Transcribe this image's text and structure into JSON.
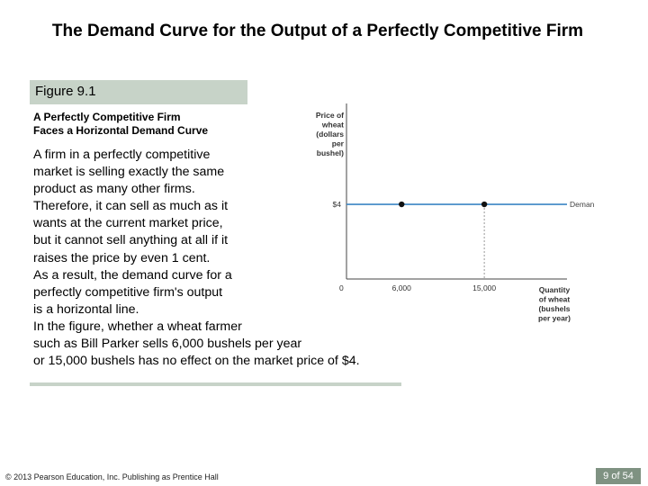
{
  "slide": {
    "title": "The Demand Curve for the Output of a Perfectly Competitive Firm",
    "figure_label": "Figure 9.1",
    "figure_subtitle": [
      "A Perfectly Competitive Firm",
      "Faces a Horizontal Demand Curve"
    ],
    "body_lines": [
      "A firm in a perfectly competitive",
      "market is selling exactly the same",
      "product as many other firms.",
      "Therefore, it can sell as much as it",
      "wants at the current market price,",
      "but it cannot sell anything at all if it",
      "raises the price by even 1 cent.",
      "As a result, the demand curve for a",
      "perfectly competitive firm's output",
      "is a horizontal line.",
      "In the figure, whether a wheat farmer",
      "such as Bill Parker sells 6,000 bushels per year",
      "or 15,000 bushels has no effect on the market price of $4."
    ],
    "footer_left": "© 2013 Pearson Education, Inc. Publishing as Prentice Hall",
    "page_indicator": "9 of 54"
  },
  "colors": {
    "figure_label_bg": "#c7d3c8",
    "page_indicator_bg": "#7f9282",
    "demand_line": "#3b86c4",
    "point": "#111111"
  },
  "chart_data": {
    "type": "line",
    "ylabel": [
      "Price of",
      "wheat",
      "(dollars",
      "per",
      "bushel)"
    ],
    "xlabel": [
      "Quantity",
      "of wheat",
      "(bushels",
      "per year)"
    ],
    "x_ticks": [
      {
        "value": 0,
        "label": "0"
      },
      {
        "value": 6000,
        "label": "6,000"
      },
      {
        "value": 15000,
        "label": "15,000"
      }
    ],
    "y_ticks": [
      {
        "value": 4,
        "label": "$4"
      }
    ],
    "xlim": [
      0,
      24000
    ],
    "ylim": [
      0,
      9.4
    ],
    "series": [
      {
        "name": "Demand",
        "x": [
          0,
          24000
        ],
        "y": [
          4,
          4
        ]
      }
    ],
    "points": [
      {
        "x": 6000,
        "y": 4
      },
      {
        "x": 15000,
        "y": 4
      }
    ],
    "guide_lines": [
      {
        "x": 15000,
        "y": 4
      }
    ],
    "grid": false
  }
}
